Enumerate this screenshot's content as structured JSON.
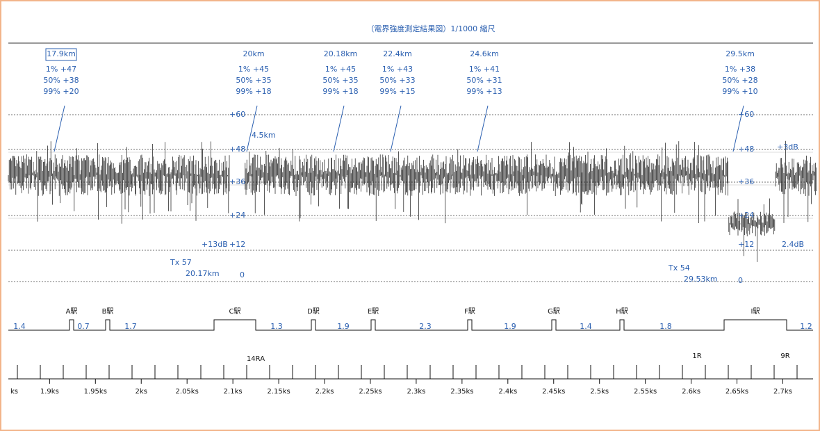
{
  "title": "（電界強度測定結果図）1/1000 縮尺",
  "annotations": [
    {
      "distance": "17.9km",
      "p1": "1% +47",
      "p50": "50% +38",
      "p99": "99% +20"
    },
    {
      "distance": "20km",
      "p1": "1% +45",
      "p50": "50% +35",
      "p99": "99% +18"
    },
    {
      "distance": "20.18km",
      "p1": "1% +45",
      "p50": "50% +35",
      "p99": "99% +18"
    },
    {
      "distance": "22.4km",
      "p1": "1% +43",
      "p50": "50% +33",
      "p99": "99% +15"
    },
    {
      "distance": "24.6km",
      "p1": "1% +41",
      "p50": "50% +31",
      "p99": "99% +13"
    },
    {
      "distance": "29.5km",
      "p1": "1% +38",
      "p50": "50% +28",
      "p99": "99% +10"
    }
  ],
  "levels_left": [
    "+60",
    "+48",
    "+36",
    "+24",
    "+12"
  ],
  "levels_right": [
    "+60",
    "+48",
    "+36",
    "+24",
    "+12"
  ],
  "notes": [
    "+13dB",
    "4.5km",
    "+3dB",
    "2.4dB"
  ],
  "tx": [
    {
      "name": "Tx 57",
      "distance": "20.17km",
      "zero": "0"
    },
    {
      "name": "Tx 54",
      "distance": "29.53km",
      "zero": "0"
    }
  ],
  "stations": [
    "A駅",
    "B駅",
    "C駅",
    "D駅",
    "E駅",
    "F駅",
    "G駅",
    "H駅",
    "I駅"
  ],
  "spans": [
    "1.4",
    "0.7",
    "1.7",
    "1.3",
    "1.9",
    "2.3",
    "1.9",
    "1.4",
    "1.8",
    "1.2"
  ],
  "markers": [
    "14RA",
    "1R",
    "9R"
  ],
  "axis": {
    "unit": "ks",
    "xlim": [
      1.855,
      2.733
    ],
    "ticks": [
      {
        "value": 1.9,
        "label": "1.9ks"
      },
      {
        "value": 1.95,
        "label": "1.95ks"
      },
      {
        "value": 2.0,
        "label": "2ks"
      },
      {
        "value": 2.05,
        "label": "2.05ks"
      },
      {
        "value": 2.1,
        "label": "2.1ks"
      },
      {
        "value": 2.15,
        "label": "2.15ks"
      },
      {
        "value": 2.2,
        "label": "2.2ks"
      },
      {
        "value": 2.25,
        "label": "2.25ks"
      },
      {
        "value": 2.3,
        "label": "2.3ks"
      },
      {
        "value": 2.35,
        "label": "2.35ks"
      },
      {
        "value": 2.4,
        "label": "2.4ks"
      },
      {
        "value": 2.45,
        "label": "2.45ks"
      },
      {
        "value": 2.5,
        "label": "2.5ks"
      },
      {
        "value": 2.55,
        "label": "2.55ks"
      },
      {
        "value": 2.6,
        "label": "2.6ks"
      },
      {
        "value": 2.65,
        "label": "2.65ks"
      },
      {
        "value": 2.7,
        "label": "2.7ks"
      }
    ]
  }
}
